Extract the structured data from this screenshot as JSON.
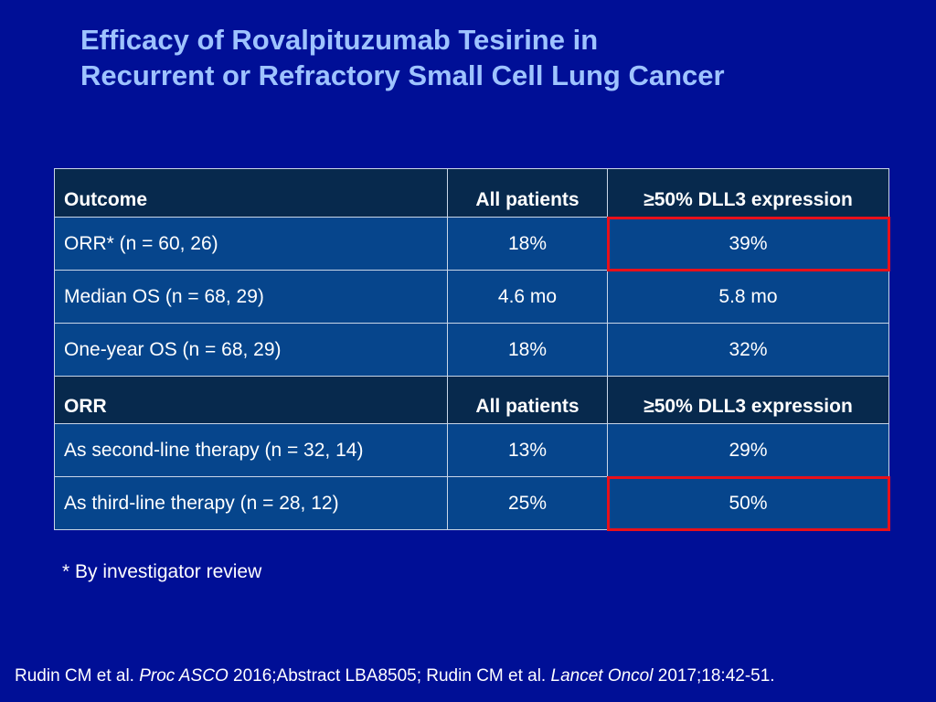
{
  "title": {
    "line1": "Efficacy of Rovalpituzumab Tesirine in",
    "line2": "Recurrent or Refractory Small Cell Lung Cancer"
  },
  "table": {
    "section1": {
      "headers": [
        "Outcome",
        "All patients",
        "≥50% DLL3 expression"
      ],
      "rows": [
        [
          "ORR* (n = 60, 26)",
          "18%",
          "39%"
        ],
        [
          "Median OS (n = 68, 29)",
          "4.6 mo",
          "5.8 mo"
        ],
        [
          "One-year OS (n = 68, 29)",
          "18%",
          "32%"
        ]
      ]
    },
    "section2": {
      "headers": [
        "ORR",
        "All patients",
        "≥50% DLL3 expression"
      ],
      "rows": [
        [
          "As second-line therapy (n = 32, 14)",
          "13%",
          "29%"
        ],
        [
          "As third-line therapy (n = 28, 12)",
          "25%",
          "50%"
        ]
      ]
    },
    "highlight_color": "#e8101a"
  },
  "footnote": "* By investigator review",
  "reference": {
    "part1": "Rudin CM et al. ",
    "journal1": "Proc ASCO",
    "part2": " 2016;Abstract LBA8505; Rudin CM et al. ",
    "journal2": "Lancet Oncol",
    "part3": " 2017;18:42-51."
  },
  "colors": {
    "background": "#000f96",
    "title": "#9ec3ff",
    "header_cell": "#07294d",
    "data_cell": "#06458c"
  }
}
